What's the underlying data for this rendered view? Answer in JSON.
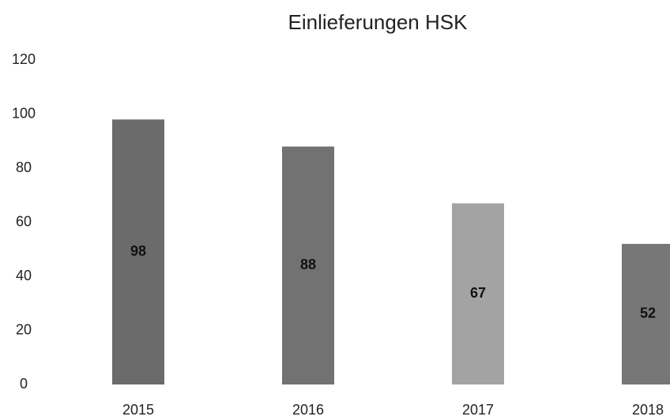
{
  "chart_data": {
    "type": "bar",
    "title": "Einlieferungen HSK",
    "categories": [
      "2015",
      "2016",
      "2017",
      "2018"
    ],
    "values": [
      98,
      88,
      67,
      52
    ],
    "colors": [
      "#6b6b6b",
      "#727272",
      "#a3a3a3",
      "#777777"
    ],
    "ylim": [
      0,
      120
    ],
    "yticks": [
      0,
      20,
      40,
      60,
      80,
      100,
      120
    ],
    "grid": false
  }
}
